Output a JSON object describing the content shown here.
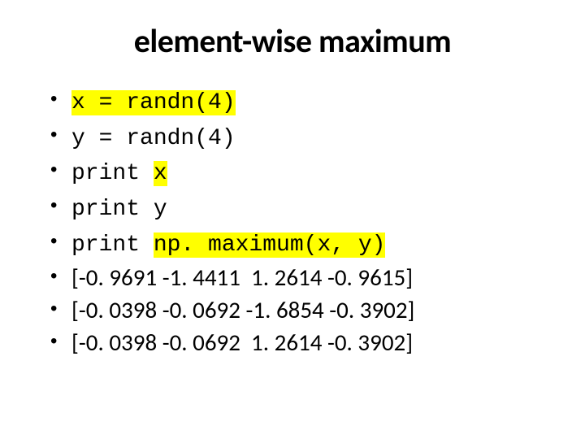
{
  "title": "element-wise maximum",
  "code_lines": {
    "line1": {
      "text": "x = randn(4)",
      "highlighted": true
    },
    "line2": {
      "text": "y = randn(4)",
      "highlighted": false
    },
    "line3": {
      "prefix": "print ",
      "hl": "x"
    },
    "line4": {
      "text": "print y"
    },
    "line5": {
      "prefix": "print ",
      "hl": "np. maximum(x, y)",
      "suffix": ""
    }
  },
  "outputs": {
    "row1": "[-0. 9691 -1. 4411  1. 2614 -0. 9615]",
    "row2": "[-0. 0398 -0. 0692 -1. 6854 -0. 3902]",
    "row3": "[-0. 0398 -0. 0692  1. 2614 -0. 3902]"
  },
  "colors": {
    "background": "#ffffff",
    "text": "#000000",
    "highlight": "#ffff00"
  },
  "fonts": {
    "title_family": "Calibri",
    "title_size_pt": 40,
    "title_weight": 700,
    "code_family": "Courier New",
    "code_size_pt": 28,
    "body_family": "Calibri",
    "body_size_pt": 29
  }
}
